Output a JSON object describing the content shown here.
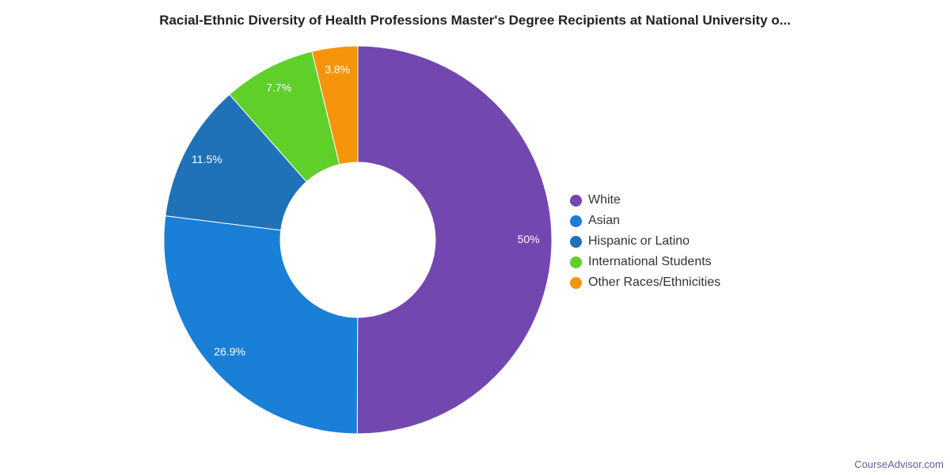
{
  "chart_data": {
    "type": "pie",
    "variant": "donut",
    "title": "Racial-Ethnic Diversity of Health Professions Master's Degree Recipients at National University o...",
    "legend_position": "right",
    "slices": [
      {
        "label": "White",
        "value": 50,
        "display": "50%",
        "color": "#7347b0"
      },
      {
        "label": "Asian",
        "value": 26.9,
        "display": "26.9%",
        "color": "#1a7fd6"
      },
      {
        "label": "Hispanic or Latino",
        "value": 11.5,
        "display": "11.5%",
        "color": "#1f72b8"
      },
      {
        "label": "International Students",
        "value": 7.7,
        "display": "7.7%",
        "color": "#5fcf2a"
      },
      {
        "label": "Other Races/Ethnicities",
        "value": 3.8,
        "display": "3.8%",
        "color": "#f5940b"
      }
    ]
  },
  "footer": {
    "source": "CourseAdvisor.com"
  }
}
